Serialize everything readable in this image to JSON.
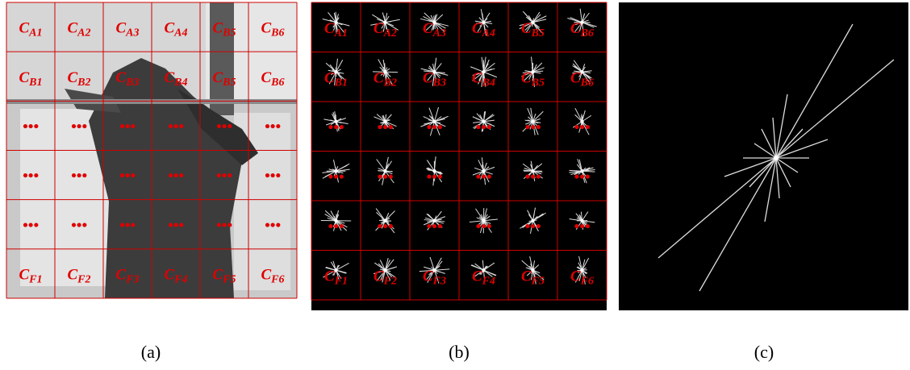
{
  "panels": [
    {
      "caption": "(a)",
      "rows": [
        [
          {
            "main": "C",
            "sub": "A1"
          },
          {
            "main": "C",
            "sub": "A2"
          },
          {
            "main": "C",
            "sub": "A3"
          },
          {
            "main": "C",
            "sub": "A4"
          },
          {
            "main": "C",
            "sub": "B5"
          },
          {
            "main": "C",
            "sub": "B6"
          }
        ],
        [
          {
            "main": "C",
            "sub": "B1"
          },
          {
            "main": "C",
            "sub": "B2"
          },
          {
            "main": "C",
            "sub": "B3"
          },
          {
            "main": "C",
            "sub": "B4"
          },
          {
            "main": "C",
            "sub": "B5"
          },
          {
            "main": "C",
            "sub": "B6"
          }
        ],
        [
          {
            "main": "•••"
          },
          {
            "main": "•••"
          },
          {
            "main": "•••"
          },
          {
            "main": "•••"
          },
          {
            "main": "•••"
          },
          {
            "main": "•••"
          }
        ],
        [
          {
            "main": "•••"
          },
          {
            "main": "•••"
          },
          {
            "main": "•••"
          },
          {
            "main": "•••"
          },
          {
            "main": "•••"
          },
          {
            "main": "•••"
          }
        ],
        [
          {
            "main": "•••"
          },
          {
            "main": "•••"
          },
          {
            "main": "•••"
          },
          {
            "main": "•••"
          },
          {
            "main": "•••"
          },
          {
            "main": "•••"
          }
        ],
        [
          {
            "main": "C",
            "sub": "F1"
          },
          {
            "main": "C",
            "sub": "F2"
          },
          {
            "main": "C",
            "sub": "F3"
          },
          {
            "main": "C",
            "sub": "F4"
          },
          {
            "main": "C",
            "sub": "F5"
          },
          {
            "main": "C",
            "sub": "F6"
          }
        ]
      ]
    },
    {
      "caption": "(b)",
      "rows": [
        [
          {
            "main": "C",
            "sub": "A1"
          },
          {
            "main": "C",
            "sub": "A2"
          },
          {
            "main": "C",
            "sub": "A3"
          },
          {
            "main": "C",
            "sub": "A4"
          },
          {
            "main": "C",
            "sub": "B5"
          },
          {
            "main": "C",
            "sub": "B6"
          }
        ],
        [
          {
            "main": "C",
            "sub": "B1"
          },
          {
            "main": "C",
            "sub": "B2"
          },
          {
            "main": "C",
            "sub": "B3"
          },
          {
            "main": "C",
            "sub": "B4"
          },
          {
            "main": "C",
            "sub": "B5"
          },
          {
            "main": "C",
            "sub": "B6"
          }
        ],
        [
          {
            "main": "•••"
          },
          {
            "main": "•••"
          },
          {
            "main": "•••"
          },
          {
            "main": "•••"
          },
          {
            "main": "•••"
          },
          {
            "main": "•••"
          }
        ],
        [
          {
            "main": "•••"
          },
          {
            "main": "•••"
          },
          {
            "main": "•••"
          },
          {
            "main": "•••"
          },
          {
            "main": "•••"
          },
          {
            "main": "•••"
          }
        ],
        [
          {
            "main": "•••"
          },
          {
            "main": "•••"
          },
          {
            "main": "•••"
          },
          {
            "main": "•••"
          },
          {
            "main": "•••"
          },
          {
            "main": "•••"
          }
        ],
        [
          {
            "main": "C",
            "sub": "F1"
          },
          {
            "main": "C",
            "sub": "F2"
          },
          {
            "main": "C",
            "sub": "F3"
          },
          {
            "main": "C",
            "sub": "F4"
          },
          {
            "main": "C",
            "sub": "F5"
          },
          {
            "main": "C",
            "sub": "F6"
          }
        ]
      ]
    },
    {
      "caption": "(c)"
    }
  ]
}
